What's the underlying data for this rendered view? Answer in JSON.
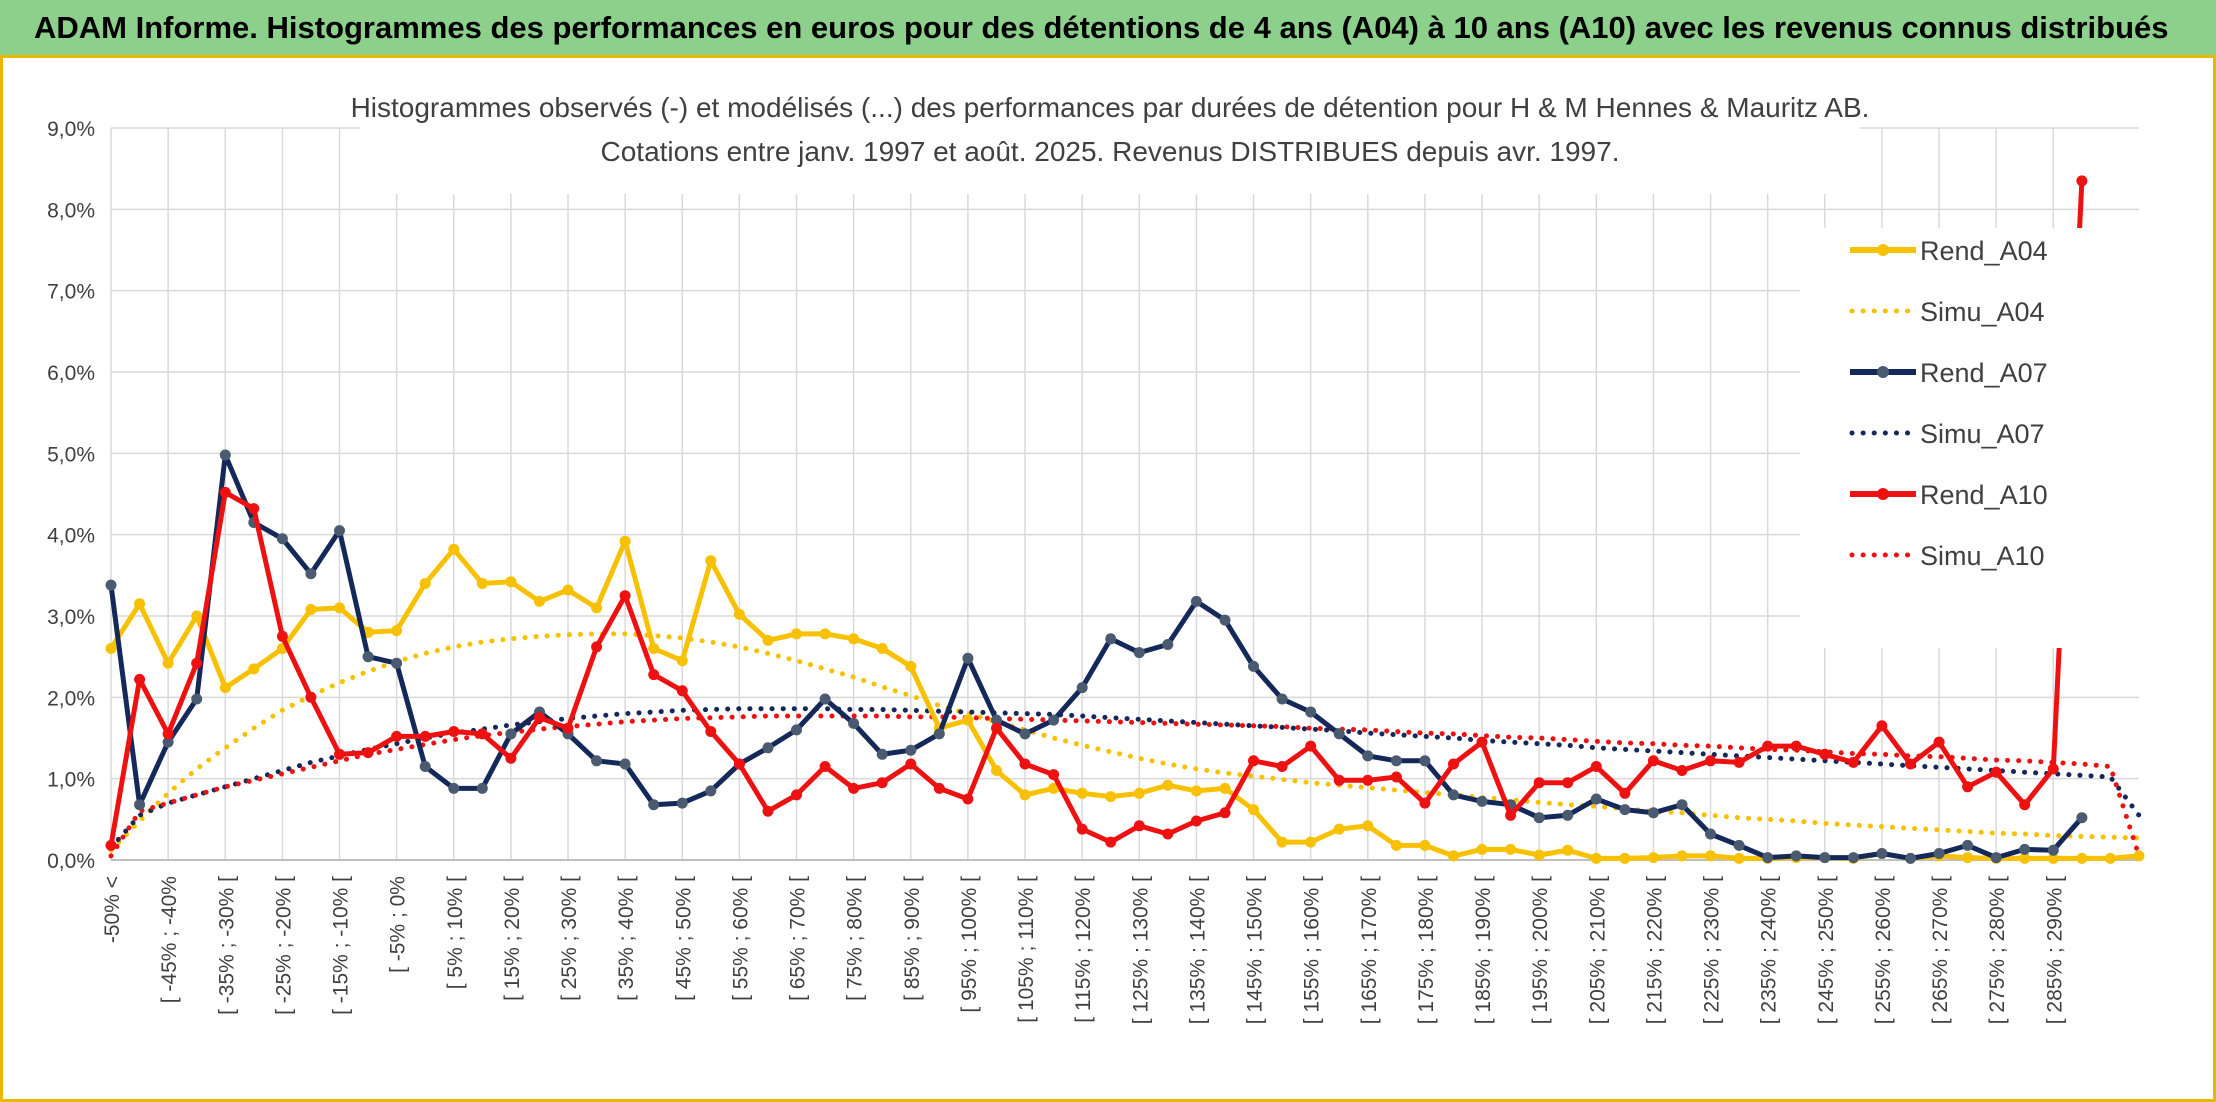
{
  "header": {
    "title": "ADAM Informe. Histogrammes des performances en euros pour des détentions de 4 ans (A04) à 10 ans (A10) avec les revenus connus distribués"
  },
  "colors": {
    "header_bg": "#8cd08c",
    "border": "#e8b800",
    "A04": "#f8c100",
    "A07": "#14285a",
    "A10": "#ee1111",
    "grid": "#d9d9d9"
  },
  "chart_data": {
    "type": "line",
    "title_line1": "Histogrammes observés (-) et modélisés (...) des performances par durées de détention pour H & M Hennes & Mauritz AB.",
    "title_line2": "Cotations entre janv. 1997 et août. 2025. Revenus DISTRIBUES depuis avr. 1997.",
    "ylim": [
      0,
      9
    ],
    "y_ticks": [
      "0,0%",
      "1,0%",
      "2,0%",
      "3,0%",
      "4,0%",
      "5,0%",
      "6,0%",
      "7,0%",
      "8,0%",
      "9,0%"
    ],
    "x_tick_labels": [
      "-50% <",
      "[ -45% ; -40%",
      "[ -35% ; -30% [",
      "[ -25% ; -20% [",
      "[ -15% ; -10% [",
      "[ -5% ; 0%",
      "[ 5% ; 10% [",
      "[ 15% ; 20% [",
      "[ 25% ; 30% [",
      "[ 35% ; 40% [",
      "[ 45% ; 50% [",
      "[ 55% ; 60% [",
      "[ 65% ; 70% [",
      "[ 75% ; 80% [",
      "[ 85% ; 90% [",
      "[ 95% ; 100% [",
      "[ 105% ; 110% [",
      "[ 115% ; 120% [",
      "[ 125% ; 130% [",
      "[ 135% ; 140% [",
      "[ 145% ; 150% [",
      "[ 155% ; 160% [",
      "[ 165% ; 170% [",
      "[ 175% ; 180% [",
      "[ 185% ; 190% [",
      "[ 195% ; 200% [",
      "[ 205% ; 210% [",
      "[ 215% ; 220% [",
      "[ 225% ; 230% [",
      "[ 235% ; 240% [",
      "[ 245% ; 250% [",
      "[ 255% ; 260% [",
      "[ 265% ; 270% [",
      "[ 275% ; 280% [",
      "[ 285% ; 290% ["
    ],
    "tick_step": 2,
    "grid": true,
    "legend_position": "right",
    "series": [
      {
        "name": "Rend_A04",
        "style": "solid",
        "color": "#f8c100",
        "values": [
          2.6,
          3.15,
          2.42,
          3.0,
          2.12,
          2.35,
          2.6,
          3.08,
          3.1,
          2.8,
          2.82,
          3.4,
          3.82,
          3.4,
          3.42,
          3.18,
          3.32,
          3.1,
          3.92,
          2.6,
          2.45,
          3.68,
          3.02,
          2.7,
          2.78,
          2.78,
          2.72,
          2.6,
          2.38,
          1.62,
          1.72,
          1.1,
          0.8,
          0.88,
          0.82,
          0.78,
          0.82,
          0.92,
          0.85,
          0.88,
          0.62,
          0.22,
          0.22,
          0.38,
          0.42,
          0.18,
          0.18,
          0.05,
          0.13,
          0.13,
          0.06,
          0.12,
          0.02,
          0.02,
          0.03,
          0.05,
          0.05,
          0.02,
          0.02,
          0.03,
          0.03,
          0.02,
          0.08,
          0.02,
          0.05,
          0.03,
          0.02,
          0.02,
          0.02,
          0.02,
          0.02,
          0.05
        ]
      },
      {
        "name": "Simu_A04",
        "style": "dotted",
        "color": "#f8c100",
        "values": [
          0.12,
          0.48,
          0.82,
          1.12,
          1.38,
          1.62,
          1.84,
          2.02,
          2.18,
          2.32,
          2.44,
          2.54,
          2.62,
          2.68,
          2.72,
          2.75,
          2.77,
          2.78,
          2.78,
          2.76,
          2.73,
          2.68,
          2.62,
          2.54,
          2.45,
          2.35,
          2.25,
          2.13,
          2.02,
          1.9,
          1.8,
          1.7,
          1.6,
          1.5,
          1.41,
          1.33,
          1.25,
          1.18,
          1.12,
          1.07,
          1.03,
          0.99,
          0.95,
          0.92,
          0.89,
          0.86,
          0.83,
          0.8,
          0.77,
          0.74,
          0.71,
          0.68,
          0.66,
          0.63,
          0.6,
          0.58,
          0.55,
          0.52,
          0.5,
          0.48,
          0.45,
          0.43,
          0.41,
          0.39,
          0.37,
          0.35,
          0.33,
          0.32,
          0.3,
          0.29,
          0.28,
          0.27
        ]
      },
      {
        "name": "Rend_A07",
        "style": "solid",
        "color": "#14285a",
        "values": [
          3.38,
          0.68,
          1.45,
          1.98,
          4.98,
          4.15,
          3.95,
          3.52,
          4.05,
          2.5,
          2.42,
          1.15,
          0.88,
          0.88,
          1.55,
          1.82,
          1.55,
          1.22,
          1.18,
          0.68,
          0.7,
          0.85,
          1.18,
          1.38,
          1.6,
          1.98,
          1.68,
          1.3,
          1.35,
          1.55,
          2.48,
          1.72,
          1.55,
          1.72,
          2.12,
          2.72,
          2.55,
          2.65,
          3.18,
          2.95,
          2.38,
          1.98,
          1.82,
          1.55,
          1.28,
          1.22,
          1.22,
          0.8,
          0.72,
          0.68,
          0.52,
          0.55,
          0.75,
          0.62,
          0.58,
          0.68,
          0.32,
          0.18,
          0.03,
          0.05,
          0.03,
          0.03,
          0.08,
          0.02,
          0.08,
          0.18,
          0.03,
          0.13,
          0.12,
          0.52
        ]
      },
      {
        "name": "Simu_A07",
        "style": "dotted",
        "color": "#14285a",
        "values": [
          0.15,
          0.55,
          0.7,
          0.8,
          0.9,
          1.0,
          1.1,
          1.2,
          1.28,
          1.36,
          1.43,
          1.5,
          1.56,
          1.61,
          1.66,
          1.7,
          1.74,
          1.77,
          1.8,
          1.82,
          1.84,
          1.85,
          1.86,
          1.86,
          1.86,
          1.86,
          1.85,
          1.85,
          1.84,
          1.83,
          1.82,
          1.81,
          1.8,
          1.79,
          1.77,
          1.75,
          1.73,
          1.71,
          1.69,
          1.67,
          1.65,
          1.63,
          1.61,
          1.59,
          1.56,
          1.54,
          1.52,
          1.5,
          1.47,
          1.45,
          1.43,
          1.41,
          1.38,
          1.36,
          1.34,
          1.32,
          1.3,
          1.28,
          1.26,
          1.24,
          1.22,
          1.2,
          1.18,
          1.16,
          1.14,
          1.12,
          1.1,
          1.08,
          1.06,
          1.04,
          1.02,
          0.55
        ]
      },
      {
        "name": "Rend_A10",
        "style": "solid",
        "color": "#ee1111",
        "values": [
          0.18,
          2.22,
          1.55,
          2.42,
          4.52,
          4.32,
          2.75,
          2.0,
          1.3,
          1.32,
          1.52,
          1.52,
          1.58,
          1.55,
          1.25,
          1.75,
          1.62,
          2.62,
          3.25,
          2.28,
          2.08,
          1.58,
          1.18,
          0.6,
          0.8,
          1.15,
          0.88,
          0.95,
          1.18,
          0.88,
          0.75,
          1.62,
          1.18,
          1.05,
          0.38,
          0.22,
          0.42,
          0.32,
          0.48,
          0.58,
          1.22,
          1.15,
          1.4,
          0.98,
          0.98,
          1.02,
          0.7,
          1.18,
          1.45,
          0.55,
          0.95,
          0.95,
          1.15,
          0.82,
          1.22,
          1.1,
          1.22,
          1.2,
          1.4,
          1.4,
          1.3,
          1.2,
          1.65,
          1.18,
          1.45,
          0.9,
          1.08,
          0.68,
          1.12,
          8.35
        ]
      },
      {
        "name": "Simu_A10",
        "style": "dotted",
        "color": "#ee1111",
        "values": [
          0.05,
          0.6,
          0.7,
          0.8,
          0.9,
          0.98,
          1.06,
          1.14,
          1.22,
          1.3,
          1.36,
          1.42,
          1.48,
          1.53,
          1.57,
          1.61,
          1.64,
          1.67,
          1.7,
          1.72,
          1.74,
          1.75,
          1.76,
          1.77,
          1.77,
          1.77,
          1.77,
          1.77,
          1.76,
          1.76,
          1.75,
          1.74,
          1.73,
          1.72,
          1.71,
          1.7,
          1.69,
          1.68,
          1.67,
          1.66,
          1.65,
          1.64,
          1.62,
          1.61,
          1.6,
          1.58,
          1.56,
          1.55,
          1.53,
          1.51,
          1.5,
          1.48,
          1.46,
          1.44,
          1.43,
          1.41,
          1.4,
          1.38,
          1.36,
          1.35,
          1.33,
          1.31,
          1.3,
          1.28,
          1.27,
          1.25,
          1.23,
          1.22,
          1.2,
          1.18,
          1.15,
          0.05
        ]
      }
    ]
  }
}
